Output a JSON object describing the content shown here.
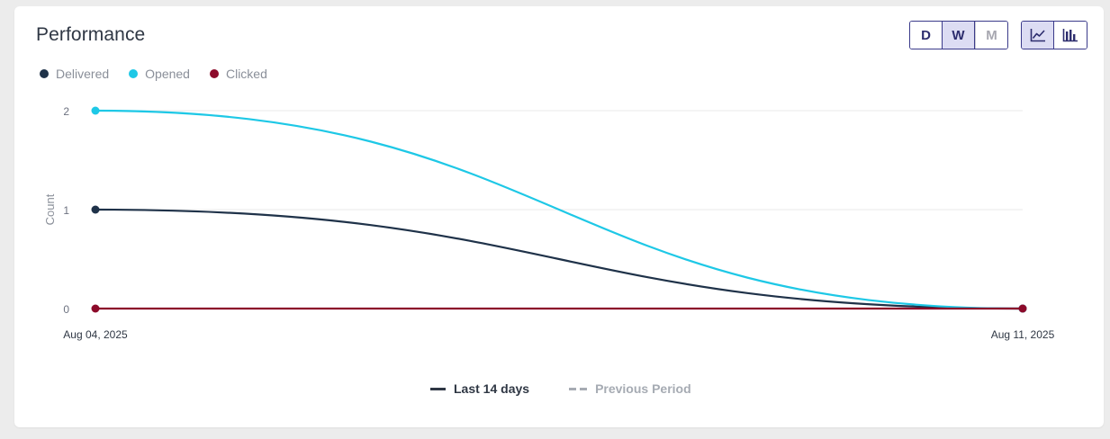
{
  "card": {
    "title": "Performance",
    "period_buttons": [
      {
        "label": "D",
        "state": "normal"
      },
      {
        "label": "W",
        "state": "active"
      },
      {
        "label": "M",
        "state": "disabled"
      }
    ],
    "chart_type_buttons": [
      {
        "icon": "line-chart-icon",
        "state": "active"
      },
      {
        "icon": "bar-chart-icon",
        "state": "normal"
      }
    ]
  },
  "colors": {
    "delivered": "#1f3249",
    "opened": "#1ec8e6",
    "clicked": "#8c0a2a",
    "grid": "#e8e8e8"
  },
  "chart_data": {
    "type": "line",
    "x": [
      "Aug 04, 2025",
      "Aug 11, 2025"
    ],
    "series": [
      {
        "name": "Delivered",
        "values": [
          1,
          0
        ]
      },
      {
        "name": "Opened",
        "values": [
          2,
          0
        ]
      },
      {
        "name": "Clicked",
        "values": [
          0,
          0
        ]
      }
    ],
    "ylabel": "Count",
    "ylim": [
      0,
      2
    ],
    "yticks": [
      0,
      1,
      2
    ],
    "grid": true,
    "legend_position": "top-left"
  },
  "period_legend": {
    "current": "Last 14 days",
    "previous": "Previous Period"
  }
}
